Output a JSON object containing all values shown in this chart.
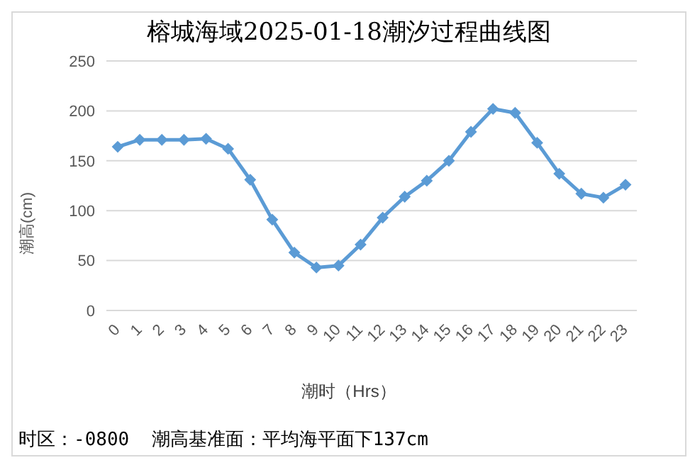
{
  "chart_data": {
    "type": "line",
    "title": "榕城海域2025-01-18潮汐过程曲线图",
    "xlabel": "潮时（Hrs）",
    "ylabel": "潮高(cm)",
    "categories": [
      "0",
      "1",
      "2",
      "3",
      "4",
      "5",
      "6",
      "7",
      "8",
      "9",
      "10",
      "11",
      "12",
      "13",
      "14",
      "15",
      "16",
      "17",
      "18",
      "19",
      "20",
      "21",
      "22",
      "23"
    ],
    "series": [
      {
        "color": "#5b9bd5",
        "values": [
          164,
          171,
          171,
          171,
          172,
          162,
          131,
          91,
          58,
          43,
          45,
          66,
          93,
          114,
          130,
          150,
          179,
          202,
          198,
          168,
          137,
          117,
          113,
          126
        ]
      }
    ],
    "ylim": [
      0,
      250
    ],
    "yticks": [
      0,
      50,
      100,
      150,
      200,
      250
    ],
    "grid": "y",
    "legend": false,
    "marker": "diamond",
    "line_style": "solid",
    "annotations": [
      "时区：-0800  潮高基准面：平均海平面下137cm"
    ]
  }
}
